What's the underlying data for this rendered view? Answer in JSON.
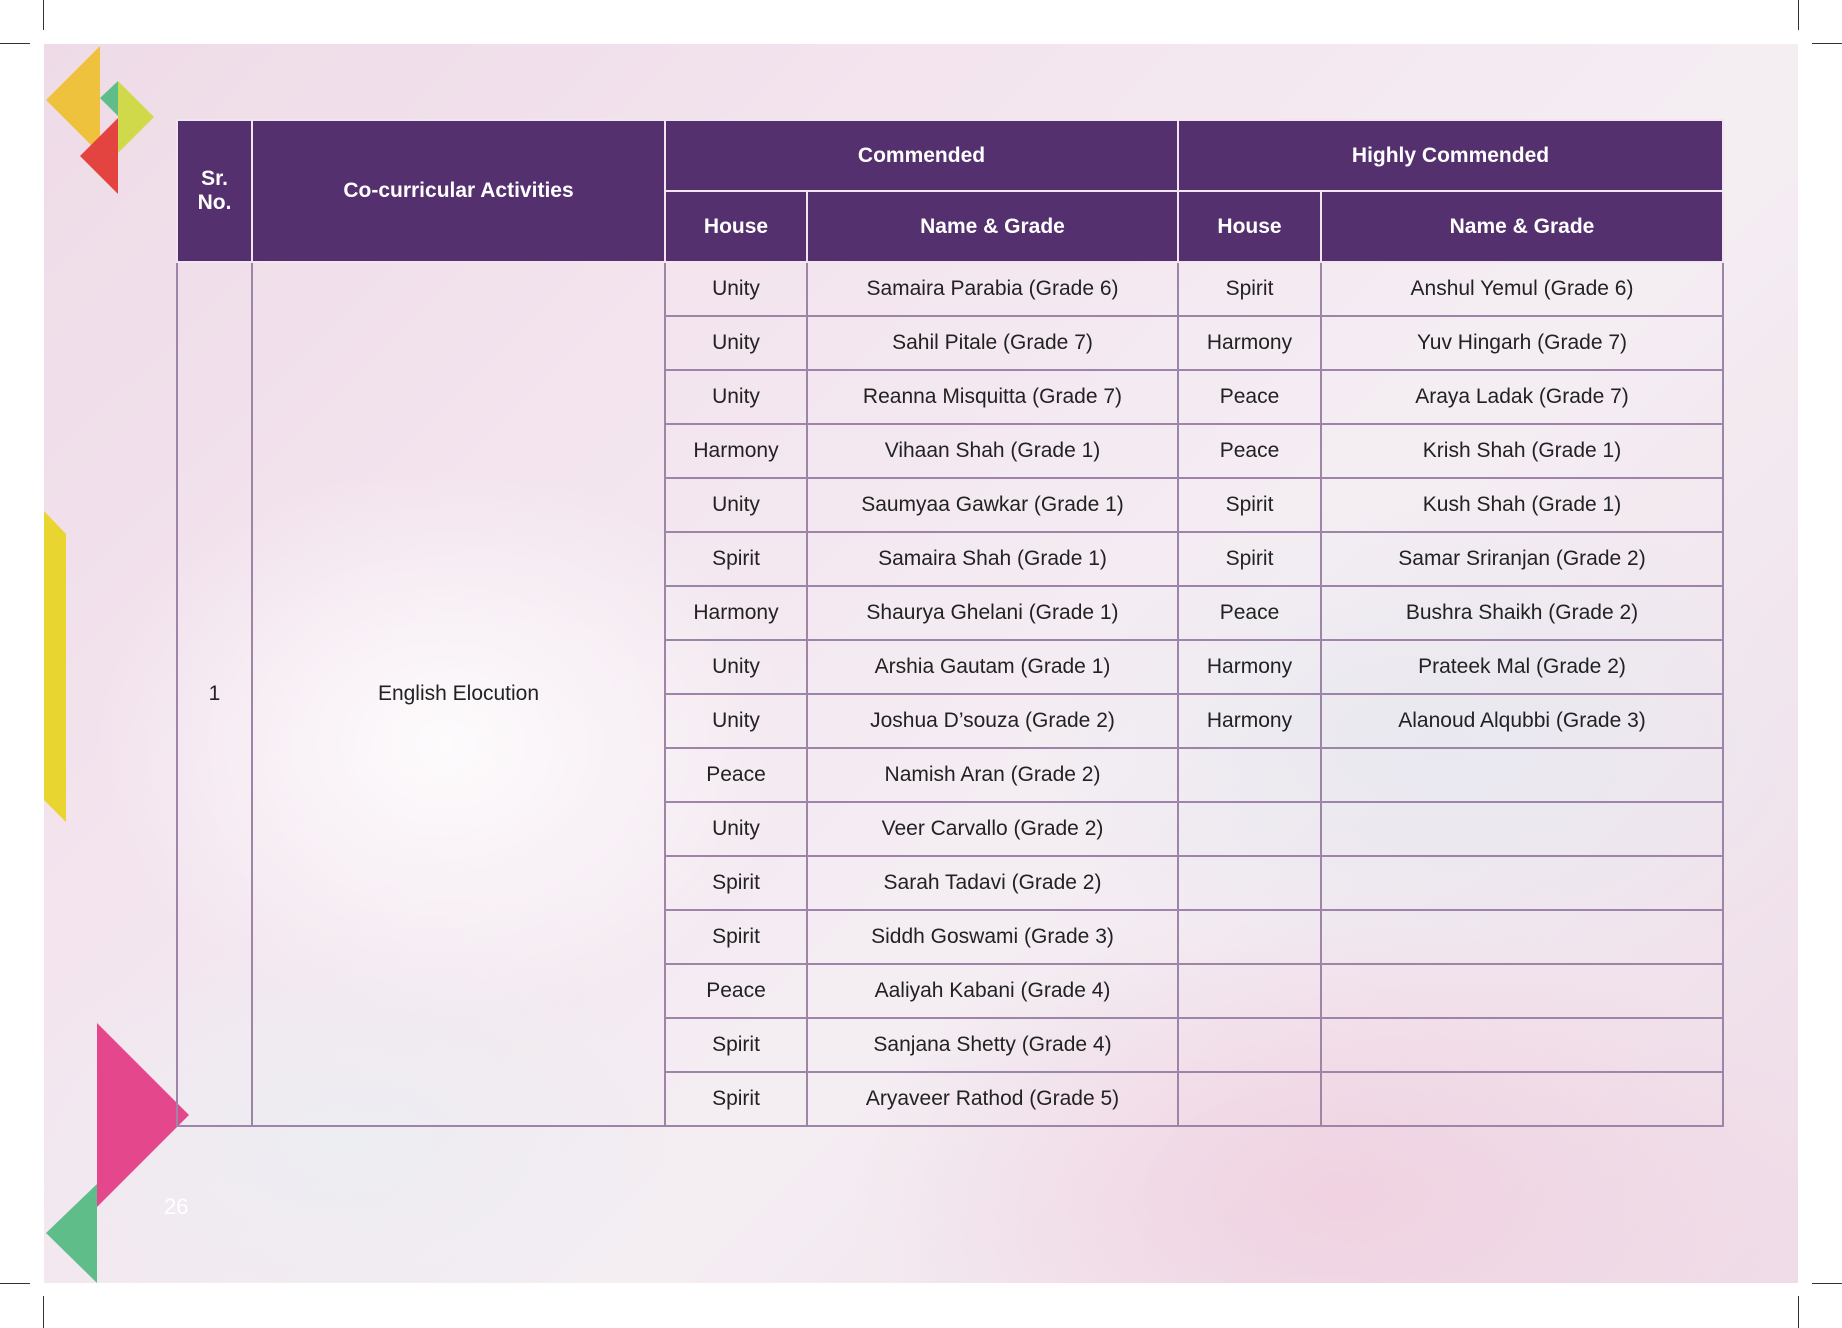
{
  "page_number": "26",
  "colors": {
    "header": "#55306e",
    "border": "#9d84a8",
    "pink": "#e4478b",
    "green": "#5fbd8a",
    "yellow": "#eec23c",
    "lime": "#cfd94a",
    "red": "#e4443f",
    "bar": "#e8d530"
  },
  "table": {
    "headers": {
      "sr_no": "Sr. No.",
      "activity": "Co-curricular Activities",
      "commended": "Commended",
      "highly_commended": "Highly Commended",
      "house": "House",
      "name_grade": "Name & Grade"
    },
    "sr_no": "1",
    "activity": "English Elocution",
    "rows": [
      [
        "Unity",
        "Samaira Parabia (Grade 6)",
        "Spirit",
        "Anshul Yemul (Grade 6)"
      ],
      [
        "Unity",
        "Sahil Pitale (Grade 7)",
        "Harmony",
        "Yuv Hingarh (Grade 7)"
      ],
      [
        "Unity",
        "Reanna Misquitta (Grade 7)",
        "Peace",
        "Araya Ladak (Grade 7)"
      ],
      [
        "Harmony",
        "Vihaan Shah (Grade 1)",
        "Peace",
        "Krish Shah (Grade 1)"
      ],
      [
        "Unity",
        "Saumyaa Gawkar (Grade 1)",
        "Spirit",
        "Kush Shah (Grade 1)"
      ],
      [
        "Spirit",
        "Samaira Shah (Grade 1)",
        "Spirit",
        "Samar Sriranjan (Grade 2)"
      ],
      [
        "Harmony",
        "Shaurya Ghelani (Grade 1)",
        "Peace",
        "Bushra Shaikh (Grade 2)"
      ],
      [
        "Unity",
        "Arshia Gautam (Grade 1)",
        "Harmony",
        "Prateek Mal (Grade 2)"
      ],
      [
        "Unity",
        "Joshua D’souza (Grade 2)",
        "Harmony",
        "Alanoud Alqubbi (Grade 3)"
      ],
      [
        "Peace",
        "Namish Aran (Grade 2)",
        "",
        ""
      ],
      [
        "Unity",
        "Veer Carvallo (Grade 2)",
        "",
        ""
      ],
      [
        "Spirit",
        "Sarah Tadavi (Grade 2)",
        "",
        ""
      ],
      [
        "Spirit",
        "Siddh Goswami (Grade 3)",
        "",
        ""
      ],
      [
        "Peace",
        "Aaliyah Kabani (Grade 4)",
        "",
        ""
      ],
      [
        "Spirit",
        "Sanjana Shetty (Grade 4)",
        "",
        ""
      ],
      [
        "Spirit",
        "Aryaveer Rathod (Grade 5)",
        "",
        ""
      ]
    ]
  }
}
